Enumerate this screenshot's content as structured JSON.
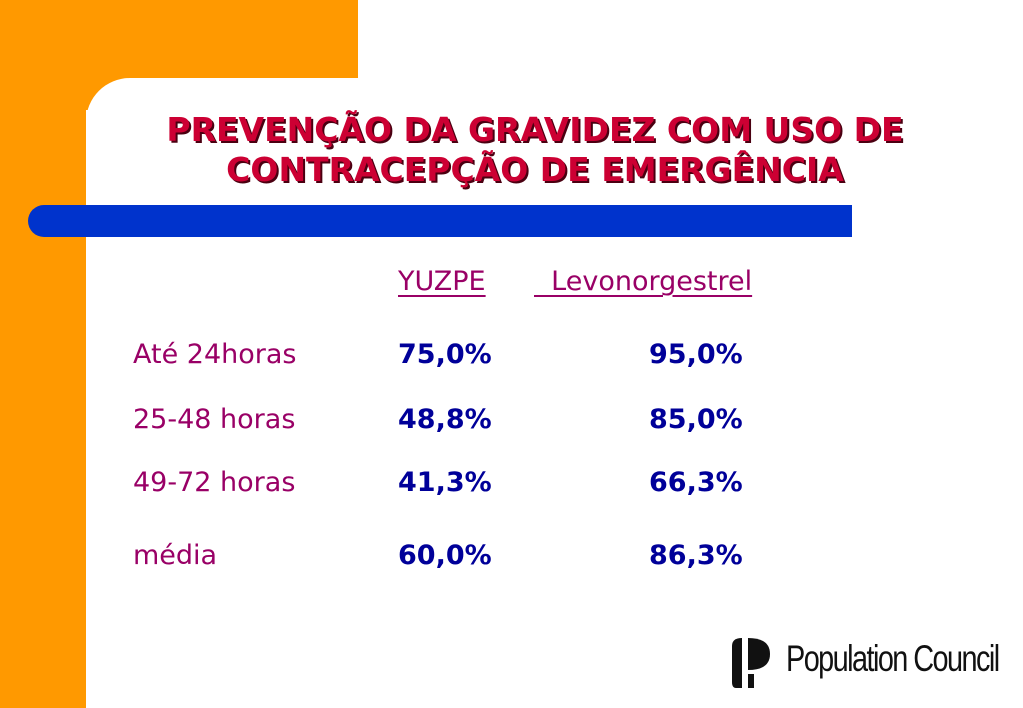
{
  "slide": {
    "title_line1": "PREVENÇÃO DA GRAVIDEZ COM USO DE",
    "title_line2": "CONTRACEPÇÃO DE EMERGÊNCIA"
  },
  "table": {
    "headers": [
      "YUZPE",
      "  Levonorgestrel"
    ],
    "rows": [
      {
        "label": "Até 24horas",
        "yuzpe": "75,0%",
        "levonorgestrel": "95,0%"
      },
      {
        "label": "25-48 horas",
        "yuzpe": "48,8%",
        "levonorgestrel": "85,0%"
      },
      {
        "label": "49-72 horas",
        "yuzpe": "41,3%",
        "levonorgestrel": "66,3%"
      },
      {
        "label": "média",
        "yuzpe": "60,0%",
        "levonorgestrel": "86,3%"
      }
    ]
  },
  "logo": {
    "text": "Population Council",
    "icon": "population-council-logo-icon"
  },
  "colors": {
    "orange": "#ff9900",
    "blue_bar": "#0033cc",
    "title": "#cc0033",
    "labels": "#990066",
    "values": "#000099"
  }
}
